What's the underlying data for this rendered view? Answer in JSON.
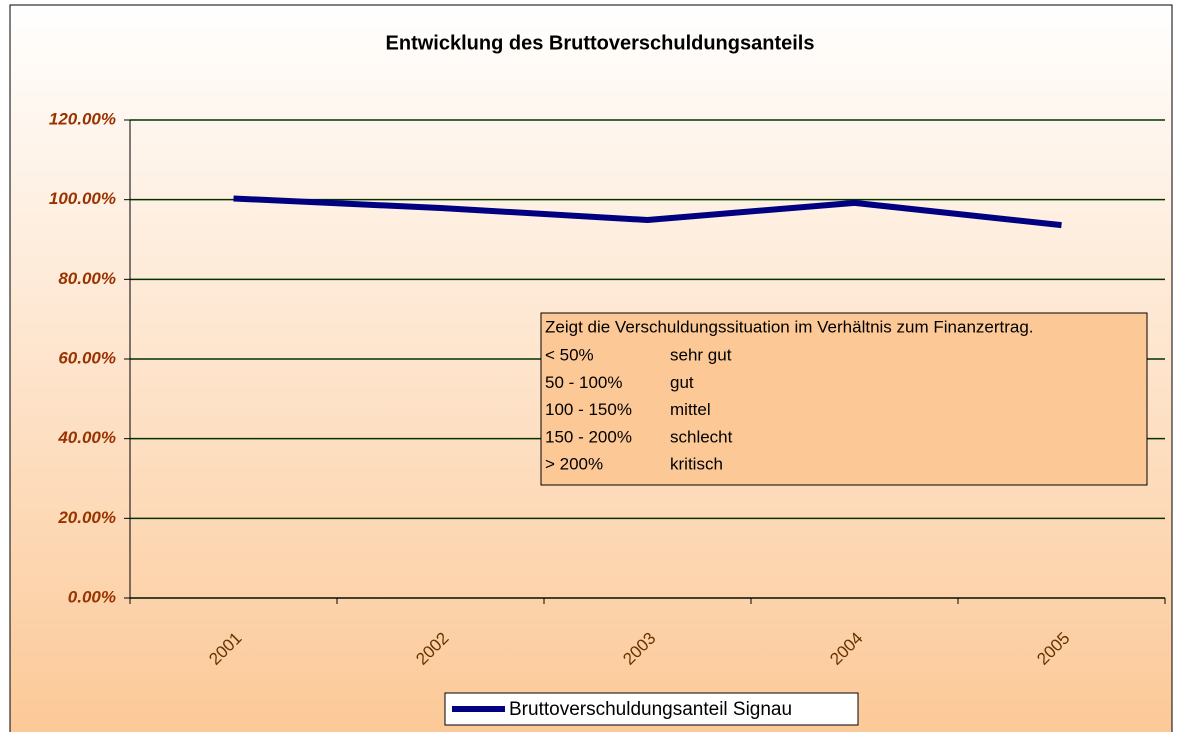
{
  "chart_data": {
    "type": "line",
    "title": "Entwicklung des Bruttoverschuldungsanteils",
    "categories": [
      "2001",
      "2002",
      "2003",
      "2004",
      "2005"
    ],
    "series": [
      {
        "name": "Bruttoverschuldungsanteil Signau",
        "color": "#000080",
        "values": [
          100.3,
          97.9,
          94.9,
          99.2,
          93.6
        ]
      }
    ],
    "ylim": [
      0,
      120
    ],
    "yticks": [
      {
        "value": 0,
        "label": "0.00%"
      },
      {
        "value": 20,
        "label": "20.00%"
      },
      {
        "value": 40,
        "label": "40.00%"
      },
      {
        "value": 60,
        "label": "60.00%"
      },
      {
        "value": 80,
        "label": "80.00%"
      },
      {
        "value": 100,
        "label": "100.00%"
      },
      {
        "value": 120,
        "label": "120.00%"
      }
    ],
    "grid": true,
    "legend": "bottom",
    "annotation": {
      "title": "Zeigt die Verschuldungssituation im Verhältnis zum Finanzertrag.",
      "rows": [
        [
          "< 50%",
          "sehr gut"
        ],
        [
          "50 - 100%",
          "gut"
        ],
        [
          "100 - 150%",
          "mittel"
        ],
        [
          "150 - 200%",
          "schlecht"
        ],
        [
          "> 200%",
          "kritisch"
        ]
      ]
    }
  }
}
